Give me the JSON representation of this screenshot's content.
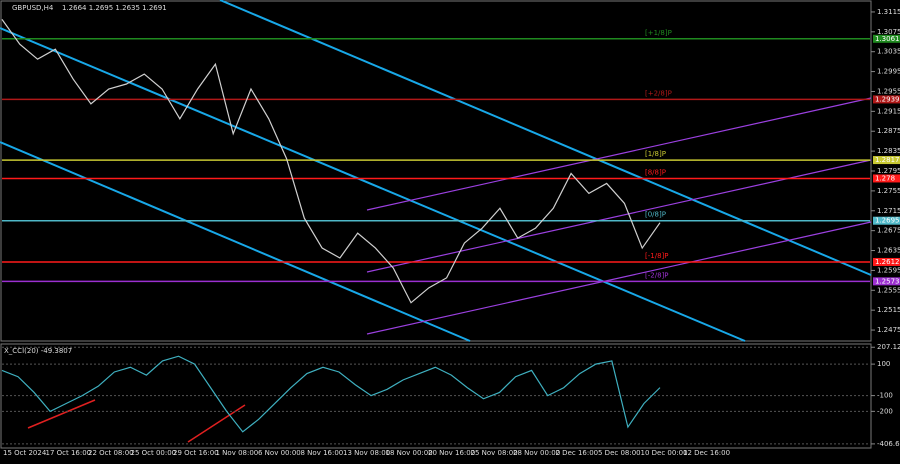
{
  "header": {
    "symbol": "GBPUSD,H4",
    "ohlc": "1.2664 1.2695 1.2635 1.2691"
  },
  "chart_data": [
    {
      "type": "line",
      "color": "#d0d0d0",
      "ylim": [
        1.2455,
        1.3135
      ],
      "yticks": [
        1.3115,
        1.3075,
        1.3035,
        1.2995,
        1.2955,
        1.2915,
        1.2875,
        1.2835,
        1.2795,
        1.2755,
        1.2715,
        1.2675,
        1.2635,
        1.2595,
        1.2555,
        1.2515,
        1.2475
      ],
      "values": [
        1.31,
        1.305,
        1.302,
        1.304,
        1.298,
        1.293,
        1.296,
        1.297,
        1.299,
        1.296,
        1.29,
        1.296,
        1.301,
        1.287,
        1.296,
        1.29,
        1.282,
        1.27,
        1.264,
        1.262,
        1.267,
        1.264,
        1.26,
        1.253,
        1.256,
        1.258,
        1.265,
        1.268,
        1.272,
        1.266,
        1.268,
        1.272,
        1.279,
        1.275,
        1.277,
        1.273,
        1.264,
        1.2691
      ],
      "levels": [
        {
          "value": 1.3061,
          "label": "[+1/8]P",
          "color": "#1f8a1f"
        },
        {
          "value": 1.2939,
          "label": "[+2/8]P",
          "color": "#b01818"
        },
        {
          "value": 1.2817,
          "label": "[1/8]P",
          "color": "#c8c832"
        },
        {
          "value": 1.278,
          "label": "[8/8]P",
          "color": "#ff1a1a"
        },
        {
          "value": 1.2695,
          "label": "[0/8]P",
          "color": "#4fb8c8"
        },
        {
          "value": 1.2612,
          "label": "[-1/8]P",
          "color": "#ff1a1a"
        },
        {
          "value": 1.2573,
          "label": "[-2/8]P",
          "color": "#9b30d0"
        }
      ],
      "x_labels": [
        "15 Oct 2024",
        "17 Oct 16:00",
        "22 Oct 08:00",
        "25 Oct 00:00",
        "29 Oct 16:00",
        "1 Nov 08:00",
        "6 Nov 00:00",
        "8 Nov 16:00",
        "13 Nov 08:00",
        "18 Nov 00:00",
        "20 Nov 16:00",
        "25 Nov 08:00",
        "28 Nov 00:00",
        "2 Dec 16:00",
        "5 Dec 08:00",
        "10 Dec 00:00",
        "12 Dec 16:00"
      ]
    },
    {
      "type": "line",
      "title": "X_CCI(20) -49.3807",
      "color": "#3fb0c0",
      "ylim": [
        -420,
        215
      ],
      "yticks": [
        {
          "value": 207.1248,
          "label": "207.1248"
        },
        100,
        -100,
        -200,
        {
          "value": -406.677,
          "label": "-406.677"
        }
      ],
      "values": [
        60,
        20,
        -80,
        -200,
        -150,
        -100,
        -40,
        50,
        80,
        30,
        120,
        150,
        100,
        -50,
        -200,
        -330,
        -250,
        -150,
        -50,
        40,
        80,
        50,
        -30,
        -100,
        -60,
        0,
        40,
        80,
        30,
        -50,
        -120,
        -80,
        20,
        60,
        -100,
        -50,
        40,
        100,
        120,
        -300,
        -150,
        -49.3807
      ]
    }
  ]
}
